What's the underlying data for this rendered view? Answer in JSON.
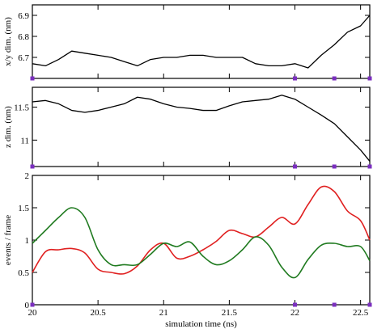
{
  "chart_data": [
    {
      "type": "line",
      "ylabel": "x/y dim. (nm)",
      "xlim": [
        20,
        22.57
      ],
      "ylim": [
        6.6,
        6.95
      ],
      "yticks": [
        6.7,
        6.8,
        6.9
      ],
      "ytick_labels": [
        "6.7",
        "6.8",
        "6.9"
      ],
      "grid": false,
      "series": [
        {
          "color": "#000000",
          "x": [
            20.0,
            20.1,
            20.2,
            20.3,
            20.4,
            20.5,
            20.6,
            20.7,
            20.8,
            20.9,
            21.0,
            21.1,
            21.2,
            21.3,
            21.4,
            21.5,
            21.6,
            21.7,
            21.8,
            21.9,
            22.0,
            22.1,
            22.2,
            22.3,
            22.4,
            22.5,
            22.57
          ],
          "y": [
            6.67,
            6.66,
            6.69,
            6.73,
            6.72,
            6.71,
            6.7,
            6.68,
            6.66,
            6.69,
            6.7,
            6.7,
            6.71,
            6.71,
            6.7,
            6.7,
            6.7,
            6.67,
            6.66,
            6.66,
            6.67,
            6.65,
            6.71,
            6.76,
            6.82,
            6.85,
            6.9
          ]
        }
      ],
      "markers": {
        "color": "#7b2fbf",
        "x": [
          20.0,
          22.0,
          22.3,
          22.57
        ],
        "y": [
          6.6,
          6.6,
          6.6,
          6.6
        ]
      }
    },
    {
      "type": "line",
      "ylabel": "z dim. (nm)",
      "xlim": [
        20,
        22.57
      ],
      "ylim": [
        10.6,
        11.8
      ],
      "yticks": [
        11.0,
        11.5
      ],
      "ytick_labels": [
        "11",
        "11.5"
      ],
      "grid": false,
      "series": [
        {
          "color": "#000000",
          "x": [
            20.0,
            20.1,
            20.2,
            20.3,
            20.4,
            20.5,
            20.6,
            20.7,
            20.8,
            20.9,
            21.0,
            21.1,
            21.2,
            21.3,
            21.4,
            21.5,
            21.6,
            21.7,
            21.8,
            21.9,
            22.0,
            22.1,
            22.2,
            22.3,
            22.4,
            22.5,
            22.57
          ],
          "y": [
            11.58,
            11.6,
            11.55,
            11.45,
            11.42,
            11.45,
            11.5,
            11.55,
            11.65,
            11.62,
            11.55,
            11.5,
            11.48,
            11.45,
            11.45,
            11.52,
            11.58,
            11.6,
            11.62,
            11.68,
            11.62,
            11.5,
            11.38,
            11.25,
            11.05,
            10.85,
            10.68
          ]
        }
      ],
      "markers": {
        "color": "#7b2fbf",
        "x": [
          20.0,
          22.0,
          22.3,
          22.57
        ],
        "y": [
          10.6,
          10.6,
          10.6,
          10.6
        ]
      }
    },
    {
      "type": "line",
      "ylabel": "events / frame",
      "xlabel": "simulation time (ns)",
      "xlim": [
        20,
        22.57
      ],
      "ylim": [
        0,
        2
      ],
      "xticks": [
        20,
        20.5,
        21,
        21.5,
        22,
        22.5
      ],
      "xtick_labels": [
        "20",
        "20.5",
        "21",
        "21.5",
        "22",
        "22.5"
      ],
      "yticks": [
        0,
        0.5,
        1,
        1.5,
        2
      ],
      "ytick_labels": [
        "0",
        "0.5",
        "1",
        "1.5",
        "2"
      ],
      "grid": false,
      "series": [
        {
          "color": "#e02020",
          "x": [
            20.0,
            20.1,
            20.2,
            20.3,
            20.4,
            20.5,
            20.6,
            20.7,
            20.8,
            20.9,
            21.0,
            21.1,
            21.2,
            21.3,
            21.4,
            21.5,
            21.6,
            21.7,
            21.8,
            21.9,
            22.0,
            22.1,
            22.2,
            22.3,
            22.4,
            22.5,
            22.57
          ],
          "y": [
            0.5,
            0.82,
            0.85,
            0.87,
            0.8,
            0.55,
            0.5,
            0.48,
            0.6,
            0.85,
            0.95,
            0.72,
            0.75,
            0.85,
            0.98,
            1.15,
            1.1,
            1.05,
            1.2,
            1.35,
            1.25,
            1.55,
            1.82,
            1.75,
            1.45,
            1.3,
            1.0
          ]
        },
        {
          "color": "#1f7a1f",
          "x": [
            20.0,
            20.1,
            20.2,
            20.3,
            20.4,
            20.5,
            20.6,
            20.7,
            20.8,
            20.9,
            21.0,
            21.1,
            21.2,
            21.3,
            21.4,
            21.5,
            21.6,
            21.7,
            21.8,
            21.9,
            22.0,
            22.1,
            22.2,
            22.3,
            22.4,
            22.5,
            22.57
          ],
          "y": [
            0.95,
            1.15,
            1.35,
            1.5,
            1.35,
            0.85,
            0.62,
            0.62,
            0.62,
            0.78,
            0.95,
            0.9,
            0.97,
            0.75,
            0.62,
            0.68,
            0.85,
            1.05,
            0.92,
            0.58,
            0.42,
            0.7,
            0.92,
            0.95,
            0.9,
            0.9,
            0.68
          ]
        }
      ],
      "markers": {
        "color": "#7b2fbf",
        "x": [
          20.0,
          22.0,
          22.3,
          22.57
        ],
        "y": [
          0,
          0,
          0,
          0
        ]
      }
    }
  ]
}
